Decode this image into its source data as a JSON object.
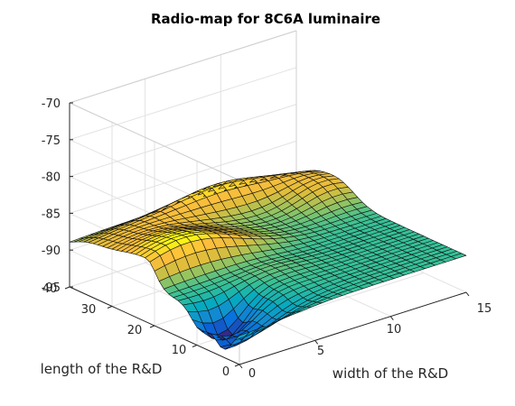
{
  "chart_data": {
    "type": "surface",
    "title": "Radio-map for 8C6A luminaire",
    "xlabel": "width of the R&D",
    "ylabel": "length of the R&D",
    "zlabel": "",
    "xlim": [
      0,
      15
    ],
    "ylim": [
      0,
      40
    ],
    "zlim": [
      -95,
      -70
    ],
    "x_ticks": [
      "0",
      "5",
      "10",
      "15"
    ],
    "y_ticks": [
      "0",
      "10",
      "20",
      "30",
      "40"
    ],
    "z_ticks": [
      "-70",
      "-75",
      "-80",
      "-85",
      "-90",
      "-95"
    ],
    "grid": true,
    "colormap": "parula",
    "peak": {
      "x": 2.5,
      "y": 22,
      "z": -85.3
    },
    "secondary_peak": {
      "x": 9,
      "y": 36,
      "z": -86
    },
    "z_min": -95
  }
}
